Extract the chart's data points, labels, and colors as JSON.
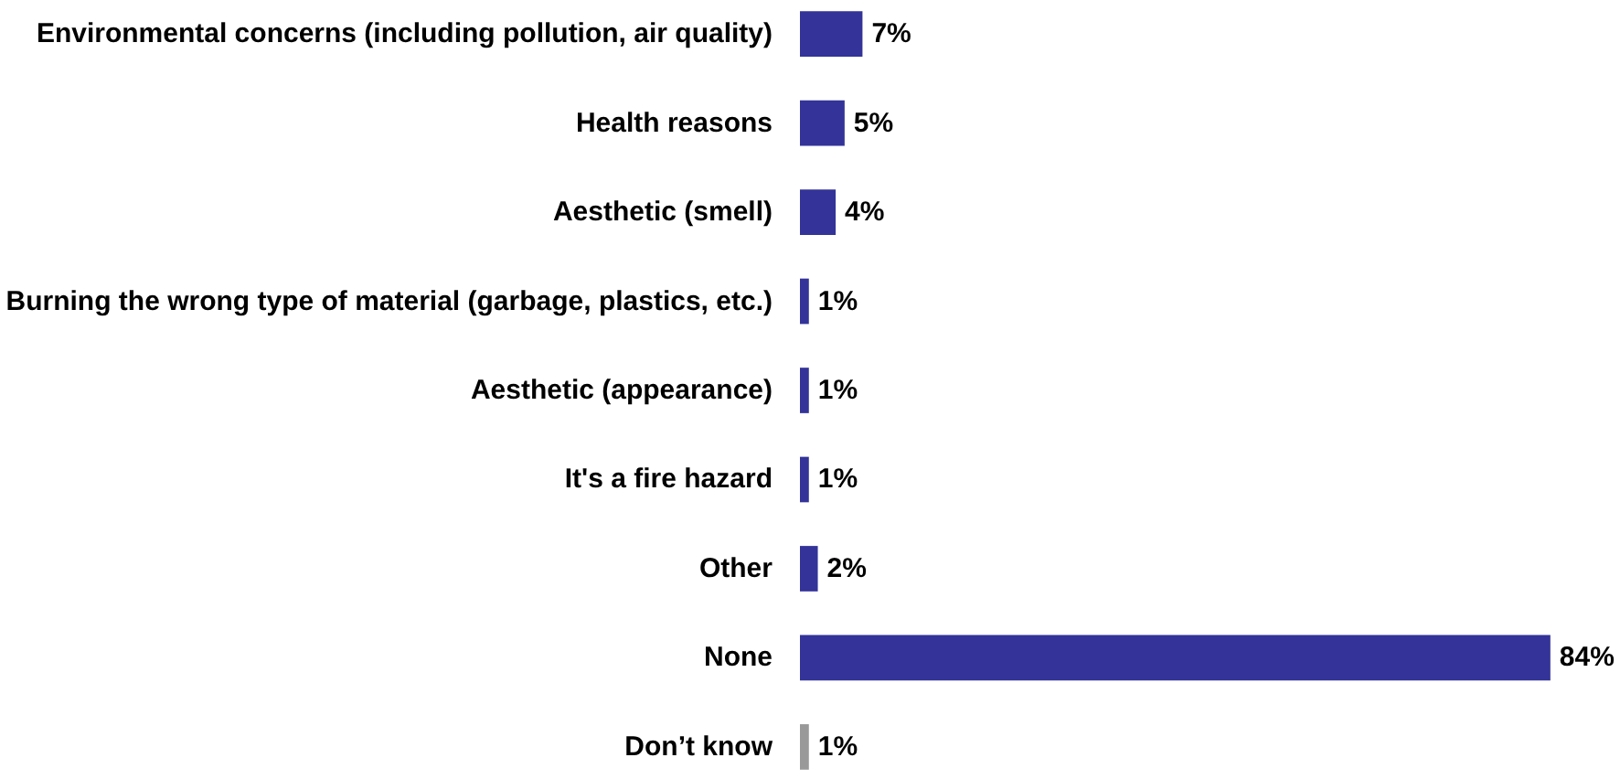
{
  "chart_data": {
    "type": "bar",
    "orientation": "horizontal",
    "categories": [
      "Environmental concerns (including pollution, air quality)",
      "Health reasons",
      "Aesthetic (smell)",
      "Burning the wrong type of material (garbage, plastics, etc.)",
      "Aesthetic (appearance)",
      "It's a fire hazard",
      "Other",
      "None",
      "Don’t know"
    ],
    "values": [
      7,
      5,
      4,
      1,
      1,
      1,
      2,
      84,
      1
    ],
    "colors": [
      "#333399",
      "#333399",
      "#333399",
      "#333399",
      "#333399",
      "#333399",
      "#333399",
      "#333399",
      "#999999"
    ],
    "value_labels": [
      "7%",
      "5%",
      "4%",
      "1%",
      "1%",
      "1%",
      "2%",
      "84%",
      "1%"
    ],
    "tick_labels": "y",
    "grid": false
  }
}
